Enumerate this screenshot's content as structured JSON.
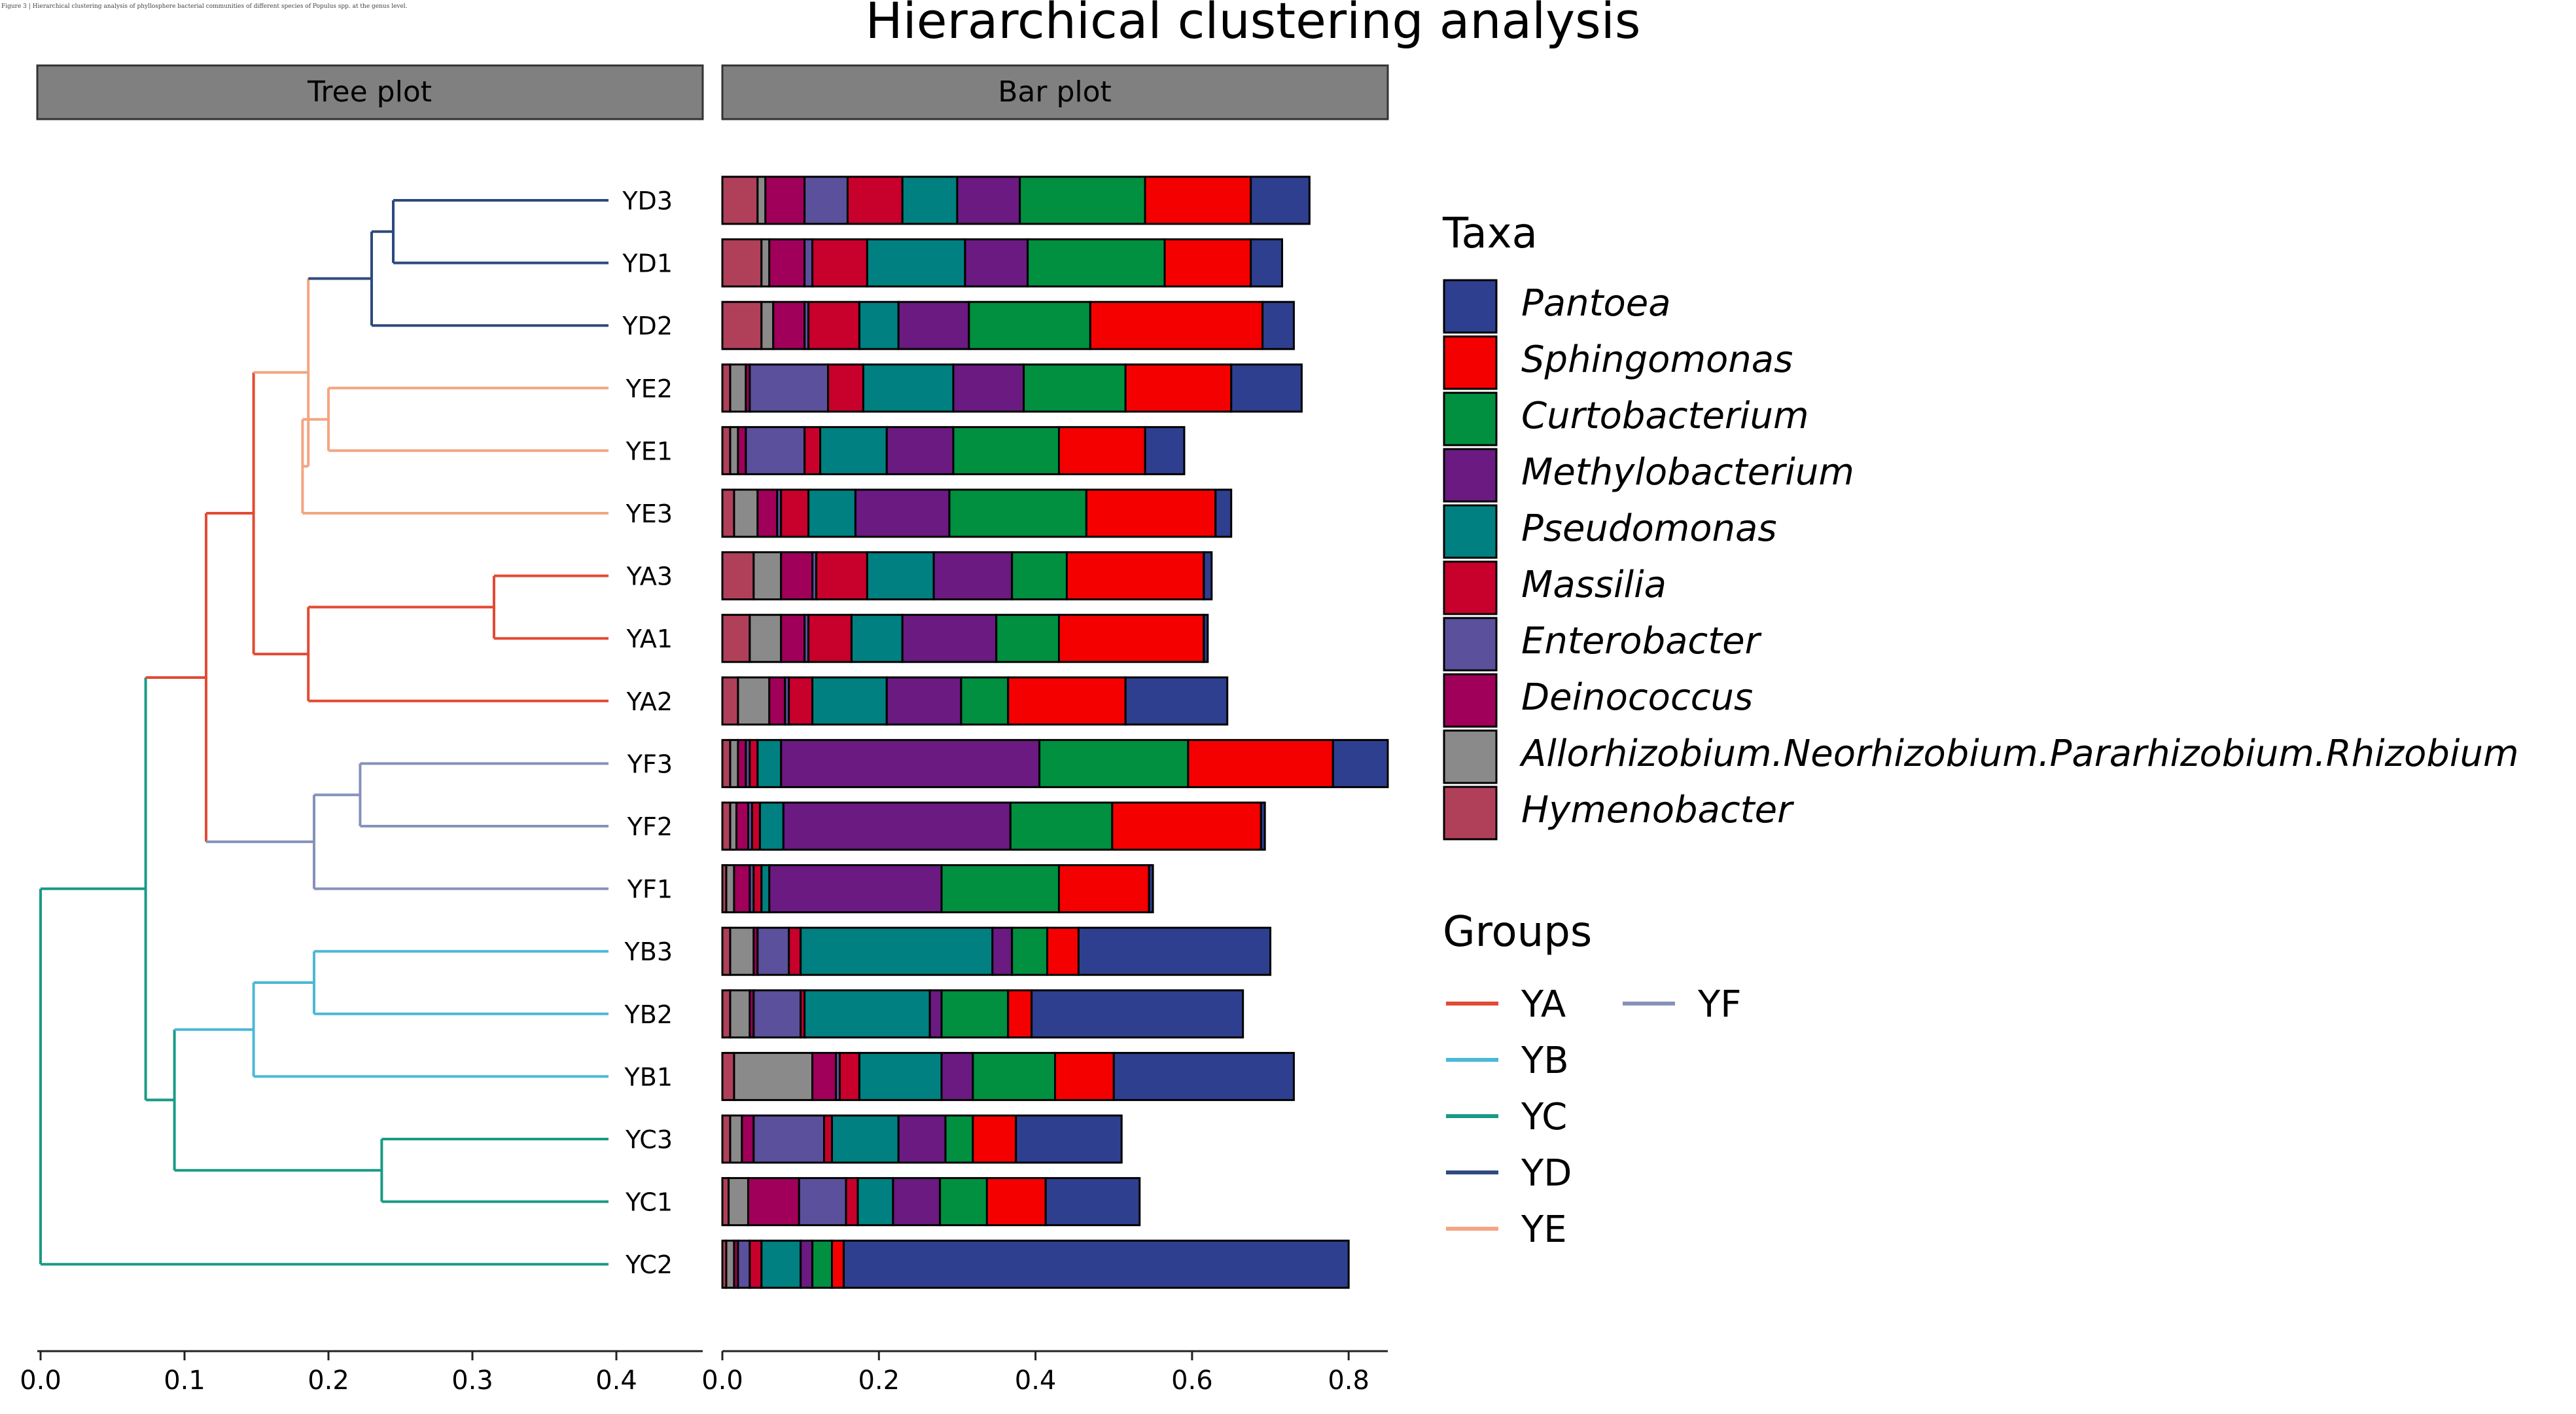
{
  "caption_note": "Figure 3 | Hierarchical clustering analysis of phyllosphere bacterial communities of different species of Populus spp. at the genus level.",
  "chart_data": {
    "type": "bar",
    "title": "Hierarchical clustering analysis",
    "panels": {
      "tree": "Tree plot",
      "bar": "Bar plot"
    },
    "tree_axis": {
      "range": [
        0,
        0.46
      ],
      "ticks": [
        0.0,
        0.1,
        0.2,
        0.3,
        0.4
      ],
      "tick_labels": [
        "0.0",
        "0.1",
        "0.2",
        "0.3",
        "0.4"
      ]
    },
    "bar_axis": {
      "range": [
        0,
        0.85
      ],
      "ticks": [
        0.0,
        0.2,
        0.4,
        0.6,
        0.8
      ],
      "tick_labels": [
        "0.0",
        "0.2",
        "0.4",
        "0.6",
        "0.8"
      ]
    },
    "samples": [
      "YD3",
      "YD1",
      "YD2",
      "YE2",
      "YE1",
      "YE3",
      "YA3",
      "YA1",
      "YA2",
      "YF3",
      "YF2",
      "YF1",
      "YB3",
      "YB2",
      "YB1",
      "YC3",
      "YC1",
      "YC2"
    ],
    "sample_groups": [
      "YD",
      "YD",
      "YD",
      "YE",
      "YE",
      "YE",
      "YA",
      "YA",
      "YA",
      "YF",
      "YF",
      "YF",
      "YB",
      "YB",
      "YB",
      "YC",
      "YC",
      "YC"
    ],
    "stack_order": [
      "Hymenobacter",
      "Allorhizobium.Neorhizobium.Pararhizobium.Rhizobium",
      "Deinococcus",
      "Enterobacter",
      "Massilia",
      "Pseudomonas",
      "Methylobacterium",
      "Curtobacterium",
      "Sphingomonas",
      "Pantoea"
    ],
    "series": [
      {
        "name": "Hymenobacter",
        "color": "#B0405A",
        "values": [
          0.045,
          0.05,
          0.05,
          0.01,
          0.01,
          0.015,
          0.04,
          0.035,
          0.02,
          0.01,
          0.01,
          0.005,
          0.01,
          0.01,
          0.015,
          0.01,
          0.008,
          0.005
        ]
      },
      {
        "name": "Allorhizobium.Neorhizobium.Pararhizobium.Rhizobium",
        "color": "#8A8A8A",
        "values": [
          0.01,
          0.01,
          0.015,
          0.02,
          0.01,
          0.03,
          0.035,
          0.04,
          0.04,
          0.01,
          0.008,
          0.01,
          0.03,
          0.025,
          0.1,
          0.015,
          0.025,
          0.01
        ]
      },
      {
        "name": "Deinococcus",
        "color": "#A0005A",
        "values": [
          0.05,
          0.045,
          0.04,
          0.005,
          0.01,
          0.025,
          0.04,
          0.03,
          0.02,
          0.01,
          0.015,
          0.02,
          0.005,
          0.005,
          0.03,
          0.015,
          0.065,
          0.005
        ]
      },
      {
        "name": "Enterobacter",
        "color": "#5B509B",
        "values": [
          0.055,
          0.01,
          0.005,
          0.1,
          0.075,
          0.005,
          0.005,
          0.005,
          0.005,
          0.005,
          0.005,
          0.005,
          0.04,
          0.06,
          0.005,
          0.09,
          0.06,
          0.015
        ]
      },
      {
        "name": "Massilia",
        "color": "#C8002C",
        "values": [
          0.07,
          0.07,
          0.065,
          0.045,
          0.02,
          0.035,
          0.065,
          0.055,
          0.03,
          0.01,
          0.01,
          0.01,
          0.015,
          0.005,
          0.025,
          0.01,
          0.015,
          0.015
        ]
      },
      {
        "name": "Pseudomonas",
        "color": "#008080",
        "values": [
          0.07,
          0.125,
          0.05,
          0.115,
          0.085,
          0.06,
          0.085,
          0.065,
          0.095,
          0.03,
          0.03,
          0.01,
          0.245,
          0.16,
          0.105,
          0.085,
          0.045,
          0.05
        ]
      },
      {
        "name": "Methylobacterium",
        "color": "#6A1A80",
        "values": [
          0.08,
          0.08,
          0.09,
          0.09,
          0.085,
          0.12,
          0.1,
          0.12,
          0.095,
          0.33,
          0.29,
          0.22,
          0.025,
          0.015,
          0.04,
          0.06,
          0.06,
          0.015
        ]
      },
      {
        "name": "Curtobacterium",
        "color": "#009040",
        "values": [
          0.16,
          0.175,
          0.155,
          0.13,
          0.135,
          0.175,
          0.07,
          0.08,
          0.06,
          0.19,
          0.13,
          0.15,
          0.045,
          0.085,
          0.105,
          0.035,
          0.06,
          0.025
        ]
      },
      {
        "name": "Sphingomonas",
        "color": "#F50000",
        "values": [
          0.135,
          0.11,
          0.22,
          0.135,
          0.11,
          0.165,
          0.175,
          0.185,
          0.15,
          0.185,
          0.19,
          0.115,
          0.04,
          0.03,
          0.075,
          0.055,
          0.075,
          0.015
        ]
      },
      {
        "name": "Pantoea",
        "color": "#2E3F8F",
        "values": [
          0.075,
          0.04,
          0.04,
          0.09,
          0.05,
          0.02,
          0.01,
          0.005,
          0.13,
          0.07,
          0.005,
          0.005,
          0.245,
          0.27,
          0.23,
          0.135,
          0.12,
          0.645
        ]
      }
    ],
    "legend_taxa_order": [
      "Pantoea",
      "Sphingomonas",
      "Curtobacterium",
      "Methylobacterium",
      "Pseudomonas",
      "Massilia",
      "Enterobacter",
      "Deinococcus",
      "Allorhizobium.Neorhizobium.Pararhizobium.Rhizobium",
      "Hymenobacter"
    ],
    "legend_taxa_title": "Taxa",
    "legend_groups_title": "Groups",
    "groups": [
      {
        "name": "YA",
        "color": "#E34A33"
      },
      {
        "name": "YB",
        "color": "#4DB8D6"
      },
      {
        "name": "YC",
        "color": "#1A9A85"
      },
      {
        "name": "YD",
        "color": "#2E4A7E"
      },
      {
        "name": "YE",
        "color": "#F4A582"
      },
      {
        "name": "YF",
        "color": "#8791BA"
      }
    ],
    "dendrogram": {
      "leaf_heights": 0.0,
      "clusters": [
        {
          "id": "D31",
          "children": [
            "YD3",
            "YD1"
          ],
          "height": 0.245,
          "color_group": "YD"
        },
        {
          "id": "D",
          "children": [
            "D31",
            "YD2"
          ],
          "height": 0.23,
          "color_group": "YD"
        },
        {
          "id": "E21",
          "children": [
            "YE2",
            "YE1"
          ],
          "height": 0.2,
          "color_group": "YE"
        },
        {
          "id": "E",
          "children": [
            "E21",
            "YE3"
          ],
          "height": 0.182,
          "color_group": "YE"
        },
        {
          "id": "DE",
          "children": [
            "D",
            "E"
          ],
          "height": 0.186,
          "color_group": "YE"
        },
        {
          "id": "A31",
          "children": [
            "YA3",
            "YA1"
          ],
          "height": 0.315,
          "color_group": "YA"
        },
        {
          "id": "A",
          "children": [
            "A31",
            "YA2"
          ],
          "height": 0.186,
          "color_group": "YA"
        },
        {
          "id": "DEA",
          "children": [
            "DE",
            "A"
          ],
          "height": 0.148,
          "color_group": "YA"
        },
        {
          "id": "F32",
          "children": [
            "YF3",
            "YF2"
          ],
          "height": 0.222,
          "color_group": "YF"
        },
        {
          "id": "F",
          "children": [
            "F32",
            "YF1"
          ],
          "height": 0.19,
          "color_group": "YF"
        },
        {
          "id": "DEAF",
          "children": [
            "DEA",
            "F"
          ],
          "height": 0.115,
          "color_group": "YA"
        },
        {
          "id": "B32",
          "children": [
            "YB3",
            "YB2"
          ],
          "height": 0.19,
          "color_group": "YB"
        },
        {
          "id": "B",
          "children": [
            "B32",
            "YB1"
          ],
          "height": 0.148,
          "color_group": "YB"
        },
        {
          "id": "C31",
          "children": [
            "YC3",
            "YC1"
          ],
          "height": 0.237,
          "color_group": "YC"
        },
        {
          "id": "BC",
          "children": [
            "B",
            "C31"
          ],
          "height": 0.093,
          "color_group": "YC"
        },
        {
          "id": "ALLBC",
          "children": [
            "DEAF",
            "BC"
          ],
          "height": 0.073,
          "color_group": "YC"
        },
        {
          "id": "ROOT",
          "children": [
            "ALLBC",
            "YC2"
          ],
          "height": 0.0,
          "color_group": "YC"
        }
      ]
    }
  }
}
